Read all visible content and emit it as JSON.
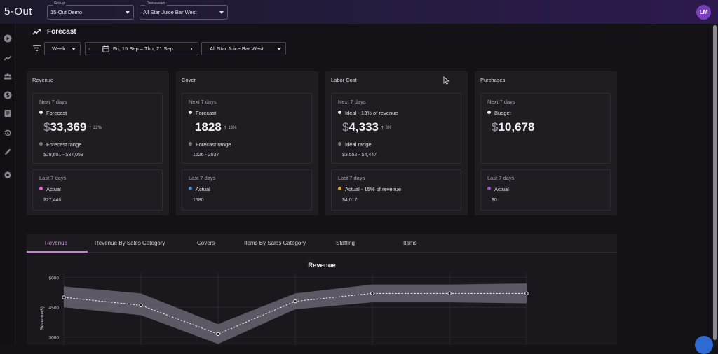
{
  "app": {
    "logo": "5-Out",
    "avatar_initials": "LM"
  },
  "header": {
    "group": {
      "label": "Group",
      "value": "15-Out Demo"
    },
    "restaurant": {
      "label": "Restaurant",
      "value": "All Star Juice Bar West"
    }
  },
  "sidebar": {
    "icons": [
      "play-circle-icon",
      "trend-icon",
      "team-icon",
      "dollar-icon",
      "receipt-icon",
      "history-icon",
      "pencil-icon",
      "gear-icon"
    ]
  },
  "page": {
    "title": "Forecast"
  },
  "toolbar": {
    "period": "Week",
    "date_range": "Fri, 15 Sep  –  Thu, 21 Sep",
    "location": "All Star Juice Bar West"
  },
  "cards": {
    "revenue": {
      "title": "Revenue",
      "next_heading": "Next 7 days",
      "primary_label": "Forecast",
      "currency": "$",
      "value": "33,369",
      "change": "22%",
      "range_label": "Forecast range",
      "range": "$29,601 - $37,059",
      "last_heading": "Last 7 days",
      "actual_label": "Actual",
      "actual": "$27,446",
      "actual_dot": "#e861d8"
    },
    "cover": {
      "title": "Cover",
      "next_heading": "Next 7 days",
      "primary_label": "Forecast",
      "value": "1828",
      "change": "16%",
      "range_label": "Forecast range",
      "range": "1626 - 2037",
      "last_heading": "Last 7 days",
      "actual_label": "Actual",
      "actual": "1580",
      "actual_dot": "#3c8fe0"
    },
    "labor": {
      "title": "Labor Cost",
      "next_heading": "Next 7 days",
      "primary_label": "Ideal - 13% of revenue",
      "currency": "$",
      "value": "4,333",
      "change": "8%",
      "range_label": "Ideal range",
      "range": "$3,552 - $4,447",
      "last_heading": "Last 7 days",
      "actual_label": "Actual - 15% of revenue",
      "actual": "$4,017",
      "actual_dot": "#e0a830"
    },
    "purchases": {
      "title": "Purchases",
      "next_heading": "Next 7 days",
      "primary_label": "Budget",
      "currency": "$",
      "value": "10,678",
      "last_heading": "Last 7 days",
      "actual_label": "Actual",
      "actual": "$0",
      "actual_dot": "#9a55d0"
    }
  },
  "tabs": [
    {
      "label": "Revenue",
      "active": true
    },
    {
      "label": "Revenue By Sales Category",
      "active": false
    },
    {
      "label": "Covers",
      "active": false
    },
    {
      "label": "Items By Sales Category",
      "active": false
    },
    {
      "label": "Staffing",
      "active": false
    },
    {
      "label": "Items",
      "active": false
    }
  ],
  "chart_data": {
    "type": "line",
    "title": "Revenue",
    "ylabel": "Revenue($)",
    "xlabel": "",
    "ylim": [
      2600,
      6200
    ],
    "yticks": [
      3000,
      4500,
      6000
    ],
    "grid": true,
    "legend": "none",
    "series": [
      {
        "values": [
          5000,
          4600,
          3150,
          4800,
          5200,
          5200,
          5200
        ]
      },
      {
        "values": [
          5550,
          5200,
          3650,
          5200,
          5650,
          5650,
          5700
        ]
      },
      {
        "values": [
          4500,
          4100,
          2650,
          4400,
          4750,
          4750,
          4700
        ]
      }
    ]
  }
}
